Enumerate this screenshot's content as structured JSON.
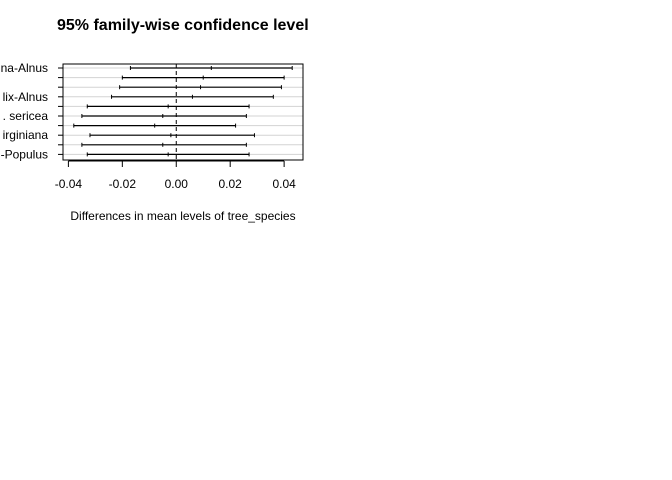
{
  "chart_data": {
    "type": "errorbar",
    "title": "95% family-wise confidence level",
    "xlabel": "Differences in mean levels of tree_species",
    "xlim": [
      -0.042,
      0.047
    ],
    "xticks": [
      "-0.04",
      "-0.02",
      "0.00",
      "0.02",
      "0.04"
    ],
    "xtick_values": [
      -0.04,
      -0.02,
      0.0,
      0.02,
      0.04
    ],
    "reference_line": 0.0,
    "grid": "horizontal",
    "comparisons": [
      {
        "label": "na-Alnus",
        "lwr": -0.017,
        "diff": 0.013,
        "upr": 0.043,
        "shown": true
      },
      {
        "label": "",
        "lwr": -0.02,
        "diff": 0.01,
        "upr": 0.04,
        "shown": false
      },
      {
        "label": "",
        "lwr": -0.021,
        "diff": 0.009,
        "upr": 0.039,
        "shown": false
      },
      {
        "label": "lix-Alnus",
        "lwr": -0.024,
        "diff": 0.006,
        "upr": 0.036,
        "shown": true
      },
      {
        "label": "",
        "lwr": -0.033,
        "diff": -0.003,
        "upr": 0.027,
        "shown": false
      },
      {
        "label": ". sericea",
        "lwr": -0.035,
        "diff": -0.005,
        "upr": 0.026,
        "shown": true
      },
      {
        "label": "",
        "lwr": -0.038,
        "diff": -0.008,
        "upr": 0.022,
        "shown": false
      },
      {
        "label": "irginiana",
        "lwr": -0.032,
        "diff": -0.002,
        "upr": 0.029,
        "shown": true
      },
      {
        "label": "",
        "lwr": -0.035,
        "diff": -0.005,
        "upr": 0.026,
        "shown": false
      },
      {
        "label": "-Populus",
        "lwr": -0.033,
        "diff": -0.003,
        "upr": 0.027,
        "shown": true
      }
    ]
  }
}
